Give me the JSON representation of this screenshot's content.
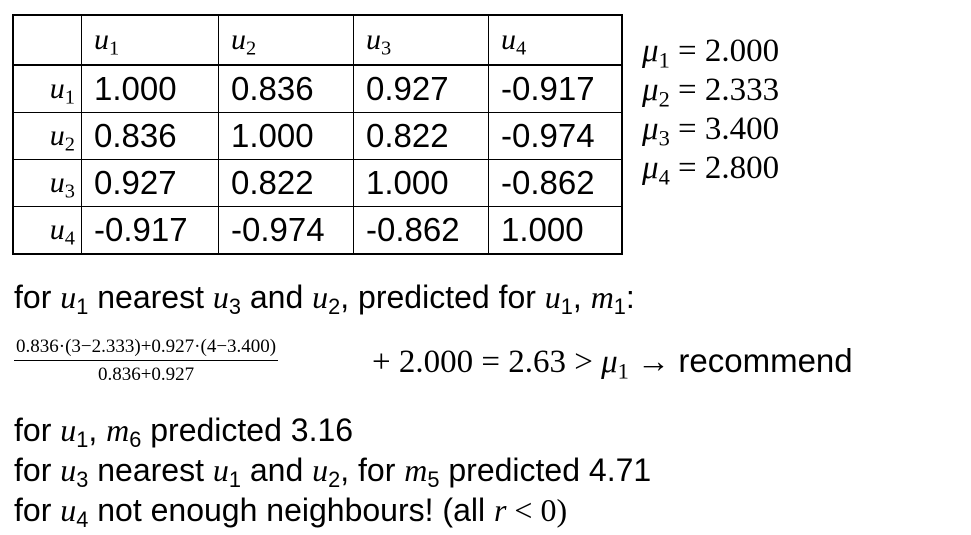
{
  "table": {
    "columns": [
      "u",
      "u",
      "u",
      "u"
    ],
    "column_subs": [
      "1",
      "2",
      "3",
      "4"
    ],
    "rows": [
      {
        "label": "u",
        "sub": "1",
        "values": [
          "1.000",
          "0.836",
          "0.927",
          "-0.917"
        ]
      },
      {
        "label": "u",
        "sub": "2",
        "values": [
          "0.836",
          "1.000",
          "0.822",
          "-0.974"
        ]
      },
      {
        "label": "u",
        "sub": "3",
        "values": [
          "0.927",
          "0.822",
          "1.000",
          "-0.862"
        ]
      },
      {
        "label": "u",
        "sub": "4",
        "values": [
          "-0.917",
          "-0.974",
          "-0.862",
          "1.000"
        ]
      }
    ]
  },
  "means": [
    {
      "symbol": "μ",
      "sub": "1",
      "value": "= 2.000"
    },
    {
      "symbol": "μ",
      "sub": "2",
      "value": "= 2.333"
    },
    {
      "symbol": "μ",
      "sub": "3",
      "value": "= 3.400"
    },
    {
      "symbol": "μ",
      "sub": "4",
      "value": "= 2.800"
    }
  ],
  "line1": {
    "t1": "for ",
    "v1": "u",
    "s1": "1",
    "t2": " nearest ",
    "v2": "u",
    "s2": "3",
    "t3": " and ",
    "v3": "u",
    "s3": "2",
    "t4": ", predicted for ",
    "v4": "u",
    "s4": "1",
    "t5": ", ",
    "v5": "m",
    "s5": "1",
    "t6": ":"
  },
  "formula": {
    "numerator": "0.836·(3−2.333)+0.927·(4−3.400)",
    "denominator": "0.836+0.927",
    "rest_math": "+ 2.000 = 2.63 > ",
    "mu": "μ",
    "mu_sub": "1",
    "arrow": " → ",
    "result": "recommend"
  },
  "line2": {
    "t1": "for ",
    "v1": "u",
    "s1": "1",
    "t2": ", ",
    "v2": "m",
    "s2": "6",
    "t3": " predicted 3.16"
  },
  "line3": {
    "t1": "for ",
    "v1": "u",
    "s1": "3",
    "t2": " nearest ",
    "v2": "u",
    "s2": "1",
    "t3": " and ",
    "v3": "u",
    "s3": "2",
    "t4": ", for ",
    "v4": "m",
    "s4": "5",
    "t5": " predicted 4.71"
  },
  "line4": {
    "t1": "for ",
    "v1": "u",
    "s1": "4",
    "t2": " not enough neighbours! (all ",
    "v2": "r",
    "t3": " < 0)"
  }
}
